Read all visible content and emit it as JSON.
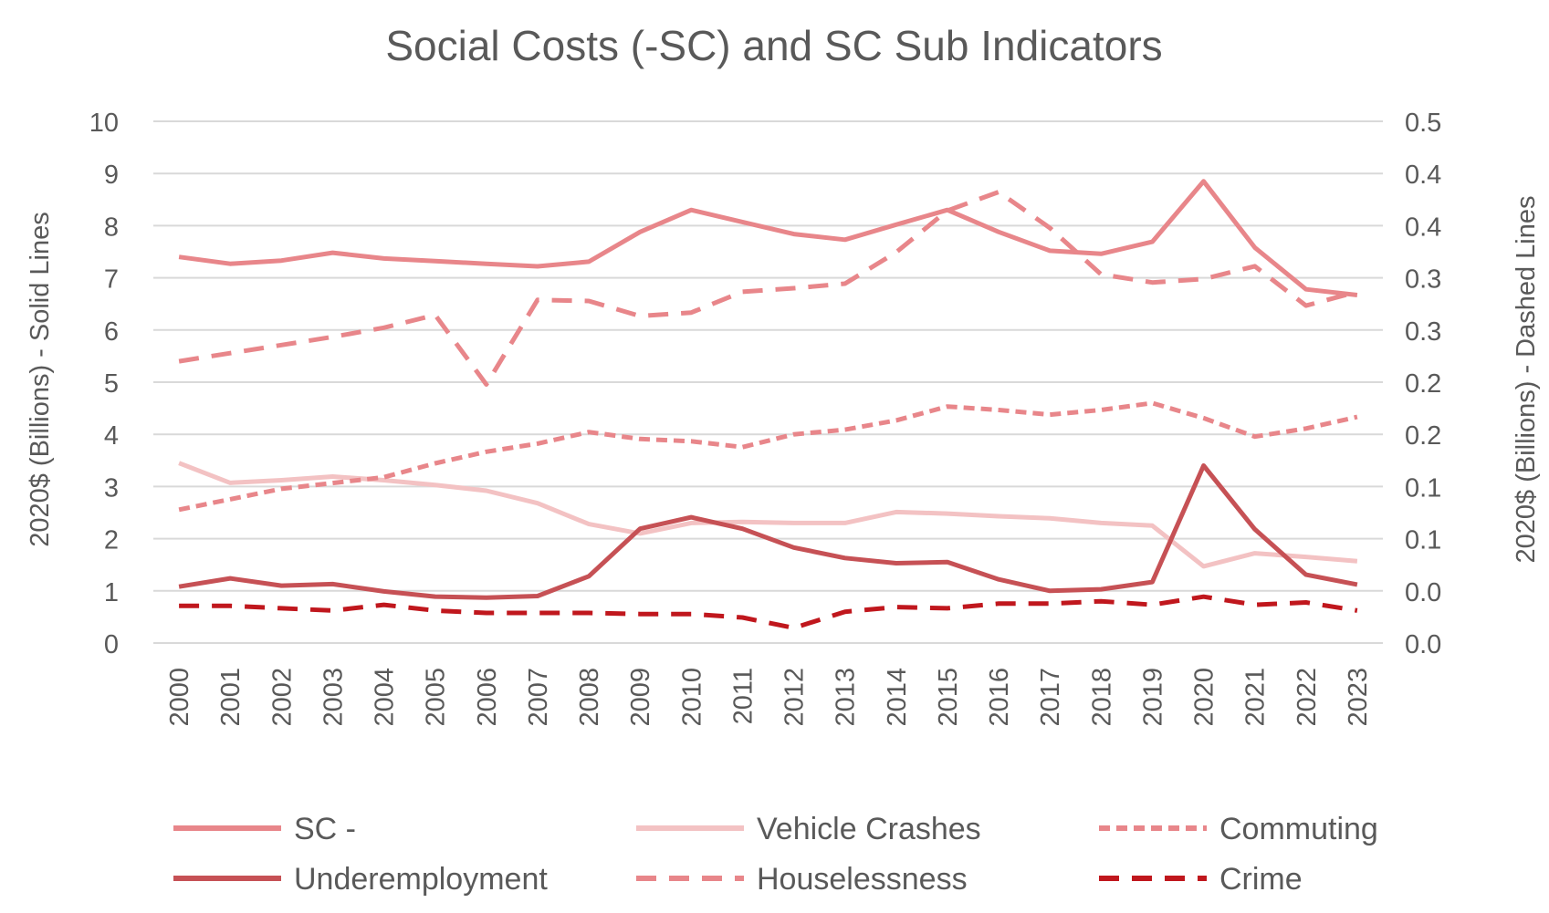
{
  "chart_data": {
    "type": "line",
    "title": "Social Costs (-SC) and SC Sub Indicators",
    "ylabel": "2020$ (Billions) - Solid Lines",
    "y2label": "2020$ (Billions) - Dashed Lines",
    "ylim": [
      0,
      10
    ],
    "y2lim": [
      0,
      0.45
    ],
    "y_ticks": [
      "0",
      "1",
      "2",
      "3",
      "4",
      "5",
      "6",
      "7",
      "8",
      "9",
      "10"
    ],
    "y2_ticks": [
      "0.0",
      "0.0",
      "0.1",
      "0.1",
      "0.2",
      "0.2",
      "0.3",
      "0.3",
      "0.4",
      "0.4",
      "0.5"
    ],
    "grid": true,
    "legend_position": "bottom",
    "x": [
      "2000",
      "2001",
      "2002",
      "2003",
      "2004",
      "2005",
      "2006",
      "2007",
      "2008",
      "2009",
      "2010",
      "2011",
      "2012",
      "2013",
      "2014",
      "2015",
      "2016",
      "2017",
      "2018",
      "2019",
      "2020",
      "2021",
      "2022",
      "2023"
    ],
    "series": [
      {
        "name": "SC -",
        "axis": "left",
        "style": "solid",
        "color": "#e8868a",
        "values": [
          7.4,
          7.27,
          7.33,
          7.48,
          7.37,
          7.32,
          7.27,
          7.22,
          7.31,
          7.88,
          8.3,
          8.07,
          7.84,
          7.73,
          8.02,
          8.3,
          7.88,
          7.52,
          7.46,
          7.69,
          8.85,
          7.58,
          6.78,
          6.67
        ]
      },
      {
        "name": "Vehicle Crashes",
        "axis": "left",
        "style": "solid",
        "color": "#f3c2c3",
        "values": [
          3.45,
          3.07,
          3.12,
          3.19,
          3.12,
          3.03,
          2.92,
          2.68,
          2.28,
          2.1,
          2.3,
          2.32,
          2.3,
          2.3,
          2.51,
          2.48,
          2.43,
          2.39,
          2.3,
          2.25,
          1.47,
          1.72,
          1.65,
          1.57
        ]
      },
      {
        "name": "Commuting",
        "axis": "right",
        "style": "dotted-dash",
        "color": "#e8868a",
        "values": [
          0.115,
          0.124,
          0.133,
          0.138,
          0.143,
          0.155,
          0.165,
          0.172,
          0.182,
          0.176,
          0.174,
          0.169,
          0.18,
          0.184,
          0.192,
          0.204,
          0.201,
          0.197,
          0.201,
          0.207,
          0.194,
          0.178,
          0.185,
          0.195
        ]
      },
      {
        "name": "Underemployment",
        "axis": "left",
        "style": "solid",
        "color": "#c65155",
        "values": [
          1.08,
          1.24,
          1.1,
          1.13,
          0.99,
          0.89,
          0.87,
          0.9,
          1.28,
          2.19,
          2.41,
          2.19,
          1.83,
          1.63,
          1.53,
          1.55,
          1.22,
          1.0,
          1.03,
          1.17,
          3.4,
          2.18,
          1.31,
          1.12
        ]
      },
      {
        "name": "Houselessness",
        "axis": "right",
        "style": "dashed",
        "color": "#e8868a",
        "values": [
          0.243,
          0.25,
          0.257,
          0.264,
          0.272,
          0.283,
          0.223,
          0.296,
          0.295,
          0.282,
          0.285,
          0.303,
          0.306,
          0.31,
          0.337,
          0.373,
          0.389,
          0.358,
          0.318,
          0.311,
          0.314,
          0.325,
          0.291,
          0.303
        ]
      },
      {
        "name": "Crime",
        "axis": "right",
        "style": "dashed",
        "color": "#c0171d",
        "values": [
          0.032,
          0.032,
          0.03,
          0.028,
          0.033,
          0.028,
          0.026,
          0.026,
          0.026,
          0.025,
          0.025,
          0.022,
          0.013,
          0.027,
          0.031,
          0.03,
          0.034,
          0.034,
          0.036,
          0.033,
          0.04,
          0.033,
          0.035,
          0.028
        ]
      }
    ]
  }
}
